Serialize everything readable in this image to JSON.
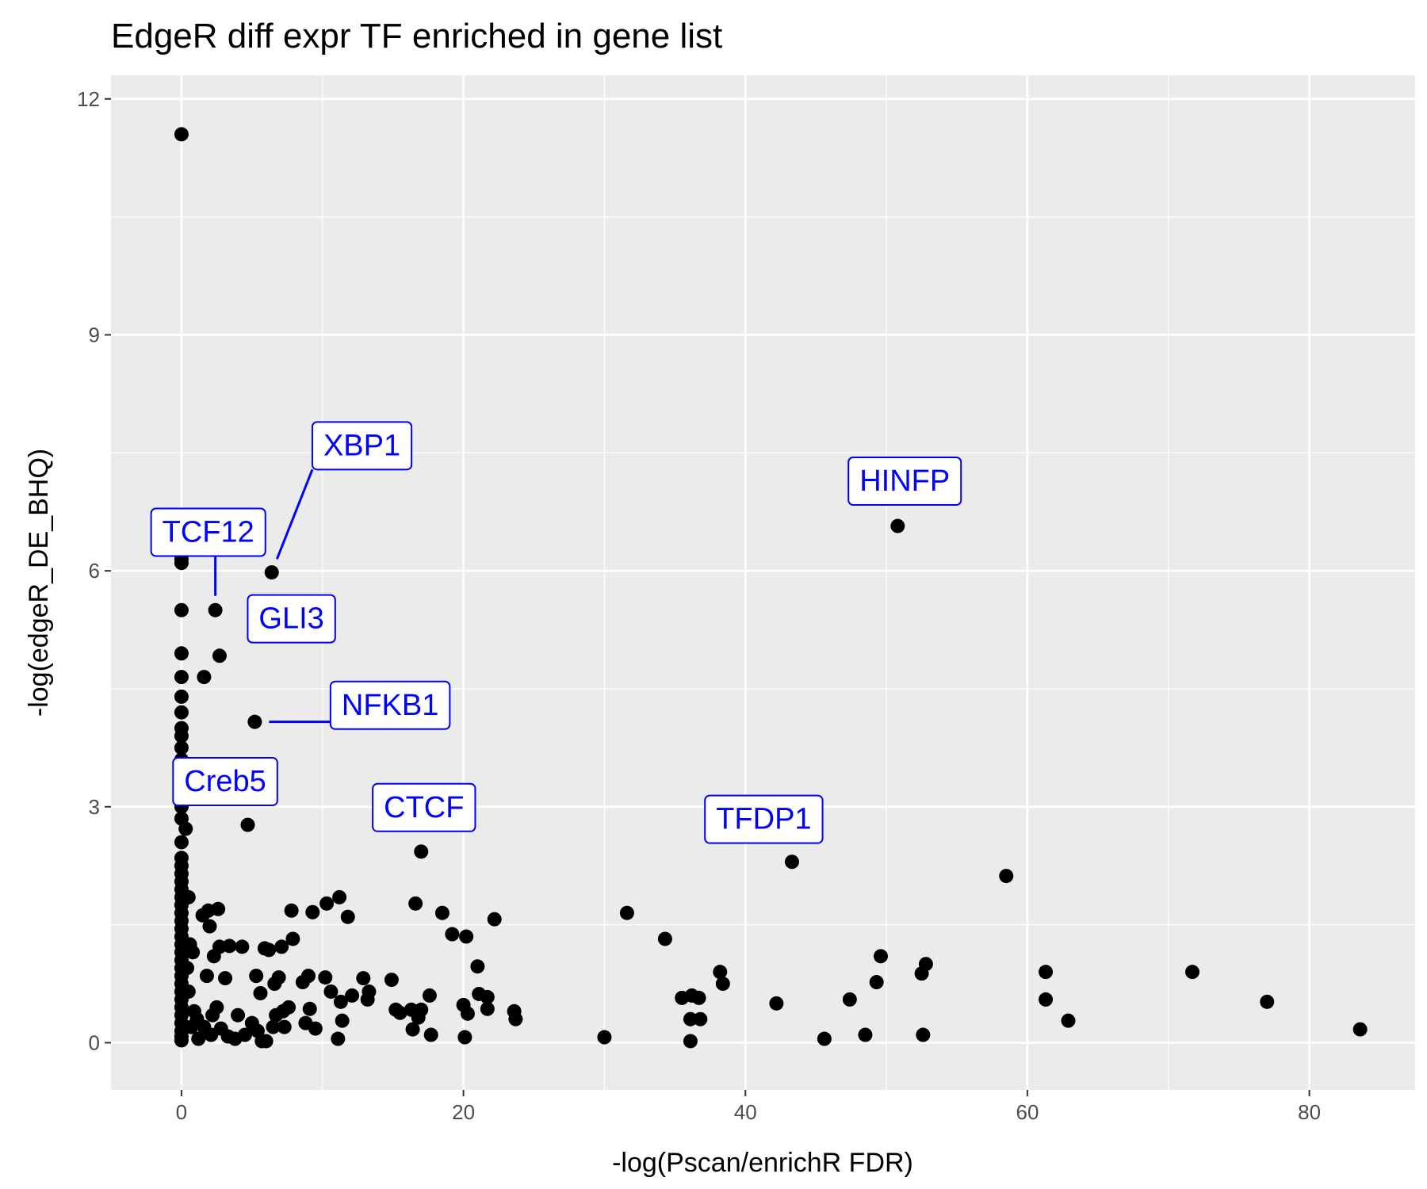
{
  "chart_data": {
    "type": "scatter",
    "title": "EdgeR diff expr TF enriched in gene list",
    "xlabel": "-log(Pscan/enrichR FDR)",
    "ylabel": "-log(edgeR_DE_BHQ)",
    "xlim": [
      -5,
      87.5
    ],
    "ylim": [
      -0.6,
      12.3
    ],
    "x_ticks": [
      0,
      20,
      40,
      60,
      80
    ],
    "y_ticks": [
      0,
      3,
      6,
      9,
      12
    ],
    "x_tick_labels": [
      "0",
      "20",
      "40",
      "60",
      "80"
    ],
    "y_tick_labels": [
      "0",
      "3",
      "6",
      "9",
      "12"
    ],
    "grid": true,
    "colors": {
      "panel_background": "#ebebeb",
      "grid_line": "#ffffff",
      "point": "#000000",
      "label_text": "#0000ff",
      "label_border": "#0000ff",
      "label_fill": "#ffffff"
    },
    "points": [
      [
        0,
        11.55
      ],
      [
        0,
        6.15
      ],
      [
        0,
        6.1
      ],
      [
        0,
        5.5
      ],
      [
        0,
        4.95
      ],
      [
        0,
        4.65
      ],
      [
        0,
        4.4
      ],
      [
        0,
        4.2
      ],
      [
        0,
        4.0
      ],
      [
        0,
        3.9
      ],
      [
        0,
        3.75
      ],
      [
        0,
        3.6
      ],
      [
        0,
        3.45
      ],
      [
        0,
        3.3
      ],
      [
        0,
        3.15
      ],
      [
        0,
        3.0
      ],
      [
        0,
        2.85
      ],
      [
        0.3,
        2.72
      ],
      [
        0,
        2.55
      ],
      [
        0,
        2.35
      ],
      [
        0,
        2.25
      ],
      [
        0,
        2.15
      ],
      [
        0,
        2.05
      ],
      [
        0,
        1.95
      ],
      [
        0,
        1.85
      ],
      [
        0,
        1.75
      ],
      [
        0,
        1.65
      ],
      [
        0,
        1.55
      ],
      [
        0,
        1.45
      ],
      [
        0,
        1.35
      ],
      [
        0,
        1.25
      ],
      [
        0,
        1.15
      ],
      [
        0,
        1.05
      ],
      [
        0,
        0.95
      ],
      [
        0,
        0.85
      ],
      [
        0,
        0.75
      ],
      [
        0,
        0.65
      ],
      [
        0,
        0.55
      ],
      [
        0,
        0.45
      ],
      [
        0,
        0.35
      ],
      [
        0,
        0.25
      ],
      [
        0,
        0.15
      ],
      [
        0,
        0.08
      ],
      [
        0,
        0.03
      ],
      [
        0.5,
        1.85
      ],
      [
        0.6,
        1.25
      ],
      [
        0.8,
        1.15
      ],
      [
        0.4,
        0.95
      ],
      [
        0.5,
        0.65
      ],
      [
        0.9,
        0.4
      ],
      [
        0.7,
        0.2
      ],
      [
        1.2,
        0.05
      ],
      [
        1.1,
        0.3
      ],
      [
        1.5,
        1.62
      ],
      [
        1.9,
        1.68
      ],
      [
        2.0,
        1.48
      ],
      [
        2.6,
        1.7
      ],
      [
        2.3,
        1.1
      ],
      [
        1.8,
        0.85
      ],
      [
        2.7,
        1.22
      ],
      [
        3.4,
        1.23
      ],
      [
        4.3,
        1.22
      ],
      [
        3.1,
        0.82
      ],
      [
        2.5,
        0.45
      ],
      [
        2.2,
        0.35
      ],
      [
        2.8,
        0.18
      ],
      [
        3.3,
        0.08
      ],
      [
        3.8,
        0.05
      ],
      [
        4.0,
        0.35
      ],
      [
        4.5,
        0.1
      ],
      [
        2.1,
        0.1
      ],
      [
        1.6,
        0.2
      ],
      [
        2.4,
        5.5
      ],
      [
        2.7,
        4.92
      ],
      [
        1.6,
        4.65
      ],
      [
        6.4,
        5.98
      ],
      [
        5.2,
        4.08
      ],
      [
        4.7,
        2.77
      ],
      [
        5.0,
        0.25
      ],
      [
        5.3,
        0.85
      ],
      [
        5.6,
        0.63
      ],
      [
        5.9,
        1.2
      ],
      [
        6.2,
        1.18
      ],
      [
        6.6,
        0.75
      ],
      [
        6.9,
        0.83
      ],
      [
        7.1,
        1.22
      ],
      [
        6.7,
        0.35
      ],
      [
        7.2,
        0.4
      ],
      [
        7.6,
        0.45
      ],
      [
        7.9,
        1.32
      ],
      [
        7.8,
        1.68
      ],
      [
        8.6,
        0.77
      ],
      [
        9.0,
        0.85
      ],
      [
        9.3,
        1.66
      ],
      [
        9.1,
        0.43
      ],
      [
        9.5,
        0.18
      ],
      [
        8.8,
        0.25
      ],
      [
        10.2,
        0.83
      ],
      [
        10.6,
        0.65
      ],
      [
        10.3,
        1.77
      ],
      [
        11.2,
        1.85
      ],
      [
        11.8,
        1.6
      ],
      [
        11.3,
        0.52
      ],
      [
        11.1,
        0.05
      ],
      [
        11.4,
        0.28
      ],
      [
        12.1,
        0.6
      ],
      [
        12.9,
        0.82
      ],
      [
        13.3,
        0.65
      ],
      [
        13.2,
        0.55
      ],
      [
        5.7,
        0.02
      ],
      [
        6.5,
        0.2
      ],
      [
        7.3,
        0.2
      ],
      [
        5.4,
        0.15
      ],
      [
        6.0,
        0.02
      ],
      [
        14.9,
        0.8
      ],
      [
        15.2,
        0.42
      ],
      [
        15.5,
        0.38
      ],
      [
        16.3,
        0.42
      ],
      [
        16.4,
        0.17
      ],
      [
        17.0,
        0.42
      ],
      [
        16.8,
        0.32
      ],
      [
        17.7,
        0.1
      ],
      [
        16.6,
        1.77
      ],
      [
        17.6,
        0.6
      ],
      [
        18.5,
        1.65
      ],
      [
        19.2,
        1.38
      ],
      [
        20.2,
        1.35
      ],
      [
        20.0,
        0.48
      ],
      [
        20.3,
        0.37
      ],
      [
        20.1,
        0.07
      ],
      [
        21.0,
        0.97
      ],
      [
        21.1,
        0.62
      ],
      [
        21.7,
        0.58
      ],
      [
        21.7,
        0.43
      ],
      [
        22.2,
        1.57
      ],
      [
        23.6,
        0.4
      ],
      [
        23.7,
        0.3
      ],
      [
        17.0,
        2.43
      ],
      [
        30.0,
        0.07
      ],
      [
        31.6,
        1.65
      ],
      [
        34.3,
        1.32
      ],
      [
        35.5,
        0.57
      ],
      [
        36.1,
        0.3
      ],
      [
        36.2,
        0.6
      ],
      [
        36.7,
        0.57
      ],
      [
        36.8,
        0.3
      ],
      [
        38.2,
        0.9
      ],
      [
        38.4,
        0.75
      ],
      [
        36.1,
        0.02
      ],
      [
        42.2,
        0.5
      ],
      [
        43.3,
        2.3
      ],
      [
        45.6,
        0.05
      ],
      [
        47.4,
        0.55
      ],
      [
        48.5,
        0.1
      ],
      [
        49.3,
        0.77
      ],
      [
        49.6,
        1.1
      ],
      [
        50.8,
        6.57
      ],
      [
        52.5,
        0.88
      ],
      [
        52.8,
        1.0
      ],
      [
        52.6,
        0.1
      ],
      [
        58.5,
        2.12
      ],
      [
        61.3,
        0.9
      ],
      [
        61.3,
        0.55
      ],
      [
        62.9,
        0.28
      ],
      [
        71.7,
        0.9
      ],
      [
        77.0,
        0.52
      ],
      [
        83.6,
        0.17
      ]
    ],
    "annotations": [
      {
        "text": "XBP1",
        "x": 6.4,
        "y": 5.98,
        "label_x": 12.8,
        "label_y": 7.6,
        "leader": true
      },
      {
        "text": "TCF12",
        "x": 2.4,
        "y": 5.5,
        "label_x": 1.9,
        "label_y": 6.5,
        "leader": true
      },
      {
        "text": "GLI3",
        "x": 2.7,
        "y": 4.92,
        "label_x": 7.8,
        "label_y": 5.4,
        "leader": false
      },
      {
        "text": "NFKB1",
        "x": 5.2,
        "y": 4.08,
        "label_x": 14.8,
        "label_y": 4.3,
        "leader": true
      },
      {
        "text": "Creb5",
        "x": 0,
        "y": 3.45,
        "label_x": 3.1,
        "label_y": 3.33,
        "leader": false
      },
      {
        "text": "CTCF",
        "x": 17.0,
        "y": 2.43,
        "label_x": 17.2,
        "label_y": 3.0,
        "leader": false
      },
      {
        "text": "TFDP1",
        "x": 43.3,
        "y": 2.3,
        "label_x": 41.3,
        "label_y": 2.85,
        "leader": false
      },
      {
        "text": "HINFP",
        "x": 50.8,
        "y": 6.57,
        "label_x": 51.3,
        "label_y": 7.15,
        "leader": false
      }
    ]
  }
}
